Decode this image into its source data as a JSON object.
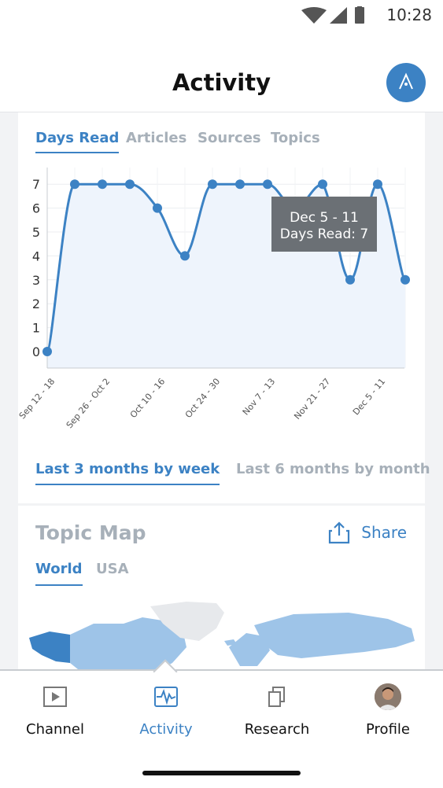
{
  "status_bar": {
    "time": "10:28"
  },
  "header": {
    "title": "Activity"
  },
  "metric_tabs": [
    {
      "label": "Days Read",
      "active": true
    },
    {
      "label": "Articles",
      "active": false
    },
    {
      "label": "Sources",
      "active": false
    },
    {
      "label": "Topics",
      "active": false
    }
  ],
  "chart_data": {
    "type": "line",
    "yticks": [
      "0",
      "1",
      "2",
      "3",
      "4",
      "5",
      "6",
      "7"
    ],
    "xtick_labels": [
      "Sep 12 - 18",
      "Sep 26 - Oct 2",
      "Oct 10 - 16",
      "Oct 24 - 30",
      "Nov 7 - 13",
      "Nov 21 - 27",
      "Dec 5 - 11"
    ],
    "ylim": [
      0,
      7
    ],
    "values": [
      0,
      7,
      7,
      7,
      6,
      4,
      7,
      7,
      7,
      6,
      7,
      3,
      7,
      3
    ],
    "grid": true,
    "line_color": "#3c82c4",
    "tooltip": {
      "title": "Dec 5 - 11",
      "label": "Days Read: 7"
    }
  },
  "range_tabs": [
    {
      "label": "Last 3 months by week",
      "active": true
    },
    {
      "label": "Last 6 months by month",
      "active": false
    }
  ],
  "topic_map": {
    "title": "Topic Map",
    "share_label": "Share",
    "geo_tabs": [
      {
        "label": "World",
        "active": true
      },
      {
        "label": "USA",
        "active": false
      }
    ]
  },
  "nav": [
    {
      "label": "Channel",
      "icon": "play-icon",
      "active": false
    },
    {
      "label": "Activity",
      "icon": "activity-icon",
      "active": true
    },
    {
      "label": "Research",
      "icon": "copy-icon",
      "active": false
    },
    {
      "label": "Profile",
      "icon": "avatar",
      "active": false
    }
  ],
  "colors": {
    "accent": "#3c82c4",
    "muted": "#a7b0b9"
  }
}
